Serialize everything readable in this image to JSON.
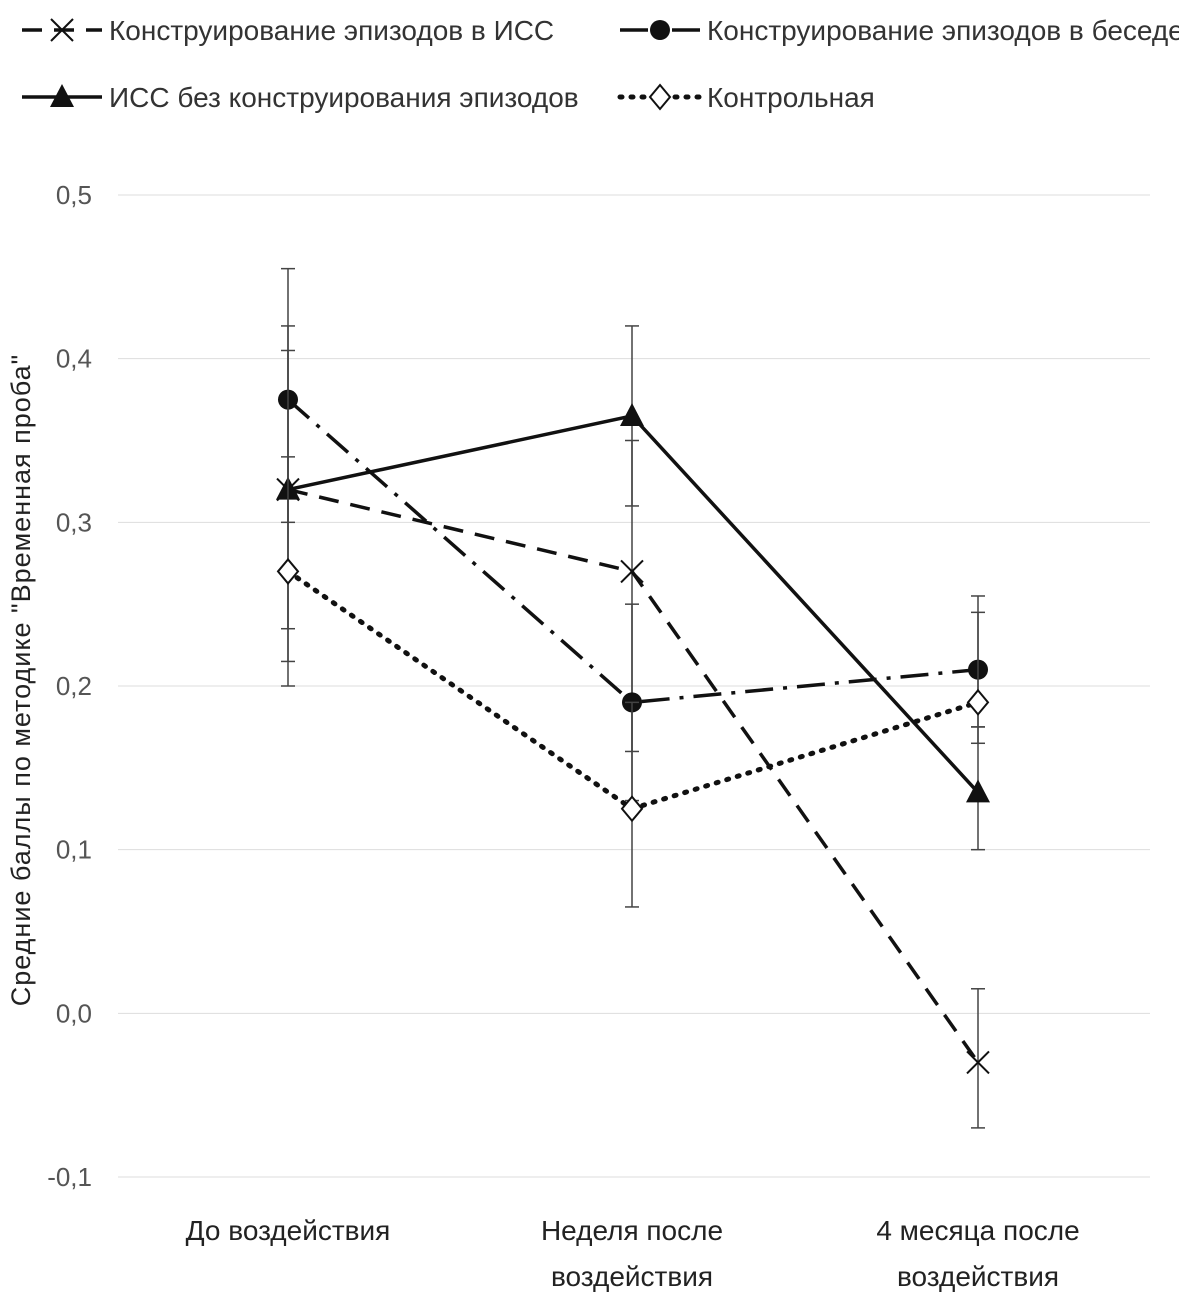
{
  "chart_data": {
    "type": "line",
    "title": "",
    "xlabel": "",
    "ylabel": "Средние баллы по методике \"Временная проба\"",
    "categories": [
      [
        "До воздействия"
      ],
      [
        "Неделя после",
        "воздействия"
      ],
      [
        "4 месяца после",
        "воздействия"
      ]
    ],
    "ylim": [
      -0.1,
      0.5
    ],
    "yticks": [
      0.5,
      0.4,
      0.3,
      0.2,
      0.1,
      0.0,
      -0.1
    ],
    "ytick_labels": [
      "0,5",
      "0,4",
      "0,3",
      "0,2",
      "0,1",
      "0,0",
      "-0,1"
    ],
    "grid": true,
    "legend_position": "top",
    "series": [
      {
        "name": "Конструирование эпизодов в ИСС",
        "marker": "x",
        "line": "dashed",
        "values": [
          0.32,
          0.27,
          -0.03
        ],
        "error_low": [
          0.215,
          0.16,
          -0.07
        ],
        "error_high": [
          0.42,
          0.35,
          0.015
        ]
      },
      {
        "name": "Конструирование эпизодов в беседе",
        "marker": "circle",
        "line": "dashdot",
        "values": [
          0.375,
          0.19,
          0.21
        ],
        "error_low": [
          0.3,
          0.13,
          0.175
        ],
        "error_high": [
          0.455,
          0.25,
          0.245
        ]
      },
      {
        "name": "ИСС без конструирования эпизодов",
        "marker": "triangle",
        "line": "solid",
        "values": [
          0.32,
          0.365,
          0.135
        ],
        "error_low": [
          0.235,
          0.31,
          0.1
        ],
        "error_high": [
          0.405,
          0.42,
          0.175
        ]
      },
      {
        "name": "Контрольная",
        "marker": "diamond",
        "line": "dotted",
        "values": [
          0.27,
          0.125,
          0.19
        ],
        "error_low": [
          0.2,
          0.065,
          0.165
        ],
        "error_high": [
          0.34,
          0.19,
          0.255
        ]
      }
    ],
    "colors": {
      "line": "#111111",
      "grid": "#dddddd",
      "tick": "#555555"
    }
  }
}
